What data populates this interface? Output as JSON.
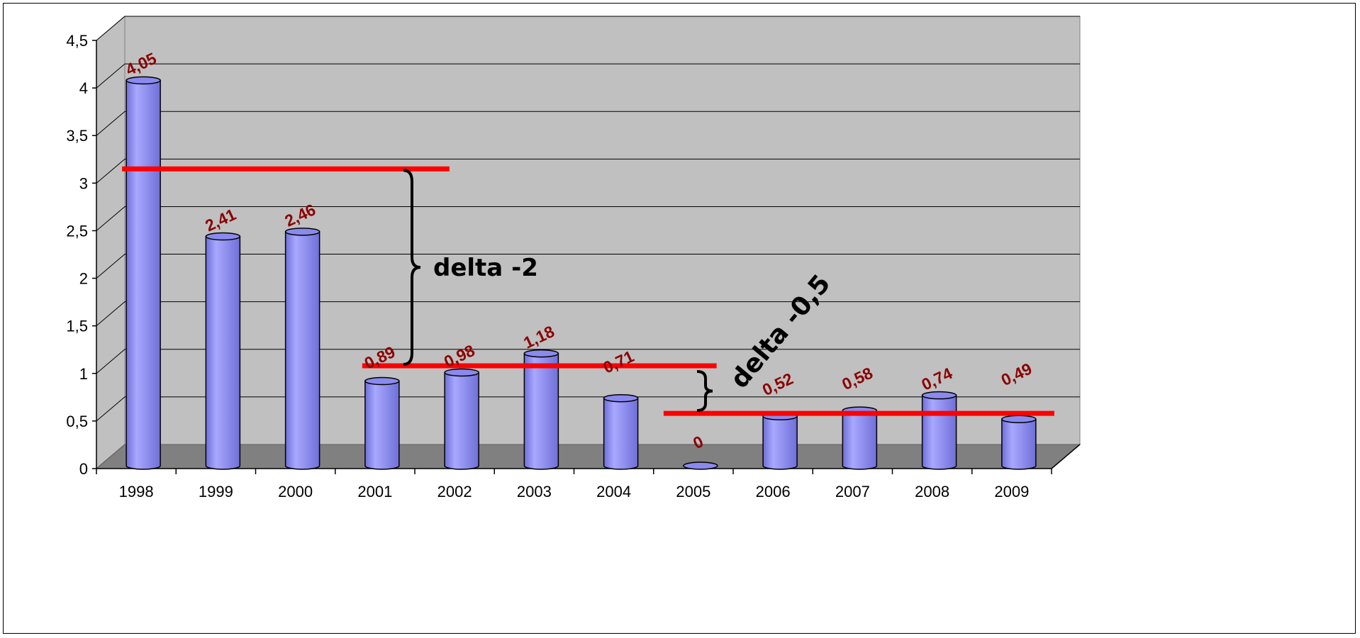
{
  "chart_data": {
    "type": "bar",
    "categories": [
      "1998",
      "1999",
      "2000",
      "2001",
      "2002",
      "2003",
      "2004",
      "2005",
      "2006",
      "2007",
      "2008",
      "2009"
    ],
    "values": [
      4.05,
      2.41,
      2.46,
      0.89,
      0.98,
      1.18,
      0.71,
      0,
      0.52,
      0.58,
      0.74,
      0.49
    ],
    "data_labels": [
      "4,05",
      "2,41",
      "2,46",
      "0,89",
      "0,98",
      "1,18",
      "0,71",
      "0",
      "0,52",
      "0,58",
      "0,74",
      "0,49"
    ],
    "ylim": [
      0,
      4.5
    ],
    "y_ticks": [
      "0",
      "0,5",
      "1",
      "1,5",
      "2",
      "2,5",
      "3",
      "3,5",
      "4",
      "4,5"
    ],
    "title": "",
    "xlabel": "",
    "ylabel": "",
    "grid": true,
    "style": "3d-cylinder",
    "colors": {
      "bar": "#9999ff",
      "bar_dark": "#6f6fd8",
      "wall": "#c0c0c0",
      "floor": "#808080",
      "data_label": "#8b0000",
      "reference_line": "#ff0000"
    },
    "reference_lines": [
      {
        "y": 3.15,
        "from": "1998",
        "to": "2001"
      },
      {
        "y": 1.08,
        "from": "2001",
        "to": "2004"
      },
      {
        "y": 0.58,
        "from": "2005",
        "to": "2009"
      }
    ],
    "annotations": [
      {
        "text": "delta -2",
        "between": [
          3.15,
          1.08
        ]
      },
      {
        "text": "delta -0,5",
        "between": [
          1.08,
          0.58
        ]
      }
    ]
  }
}
